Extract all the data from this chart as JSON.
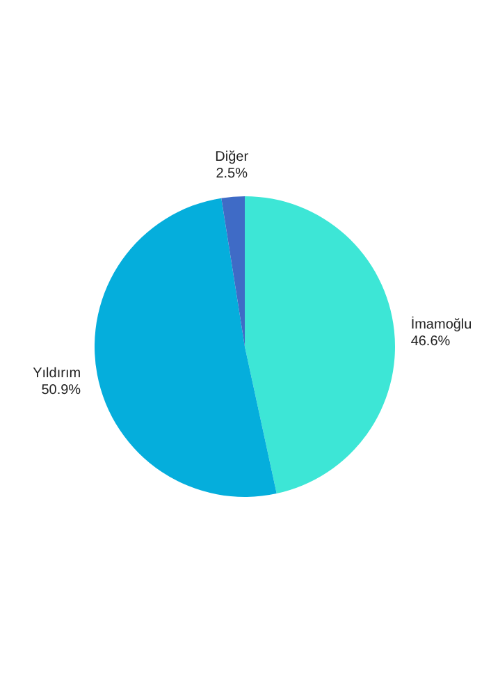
{
  "chart_data": {
    "type": "pie",
    "categories": [
      "İmamoğlu",
      "Yıldırım",
      "Diğer"
    ],
    "values": [
      46.6,
      50.9,
      2.5
    ],
    "colors": [
      "#3de6d6",
      "#05aedc",
      "#3f6bc6"
    ],
    "value_labels": [
      "46.6%",
      "50.9%",
      "2.5%"
    ]
  }
}
